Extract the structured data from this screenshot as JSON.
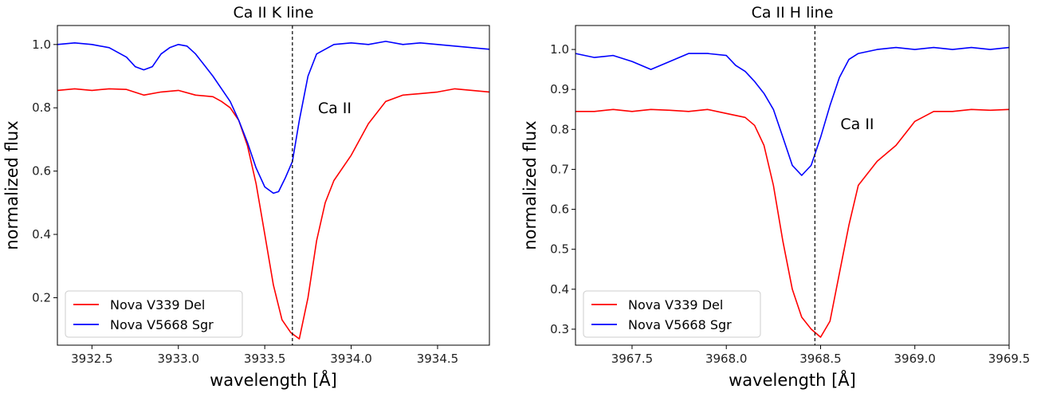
{
  "chart_data": [
    {
      "type": "line",
      "title": "Ca II K line",
      "xlabel": "wavelength [Å]",
      "ylabel": "normalized flux",
      "xlim": [
        3932.3,
        3934.8
      ],
      "ylim": [
        0.05,
        1.06
      ],
      "xticks": [
        "3932.5",
        "3933.0",
        "3933.5",
        "3934.0",
        "3934.5"
      ],
      "xtick_values": [
        3932.5,
        3933.0,
        3933.5,
        3934.0,
        3934.5
      ],
      "yticks": [
        "0.2",
        "0.4",
        "0.6",
        "0.8",
        "1.0"
      ],
      "ytick_values": [
        0.2,
        0.4,
        0.6,
        0.8,
        1.0
      ],
      "vline": 3933.66,
      "annotation": "Ca II",
      "legend_position": "lower-left",
      "grid": false,
      "series": [
        {
          "name": "Nova V339 Del",
          "color": "#ff0000",
          "x": [
            3932.3,
            3932.4,
            3932.5,
            3932.6,
            3932.7,
            3932.8,
            3932.9,
            3933.0,
            3933.1,
            3933.2,
            3933.25,
            3933.3,
            3933.35,
            3933.4,
            3933.45,
            3933.5,
            3933.55,
            3933.6,
            3933.65,
            3933.7,
            3933.75,
            3933.8,
            3933.85,
            3933.9,
            3934.0,
            3934.1,
            3934.2,
            3934.3,
            3934.4,
            3934.5,
            3934.6,
            3934.7,
            3934.8
          ],
          "y": [
            0.855,
            0.86,
            0.855,
            0.86,
            0.858,
            0.84,
            0.85,
            0.855,
            0.84,
            0.835,
            0.82,
            0.8,
            0.76,
            0.68,
            0.56,
            0.4,
            0.24,
            0.13,
            0.09,
            0.07,
            0.2,
            0.38,
            0.5,
            0.57,
            0.65,
            0.75,
            0.82,
            0.84,
            0.845,
            0.85,
            0.86,
            0.855,
            0.85
          ]
        },
        {
          "name": "Nova V5668 Sgr",
          "color": "#0000ff",
          "x": [
            3932.3,
            3932.4,
            3932.5,
            3932.6,
            3932.7,
            3932.75,
            3932.8,
            3932.85,
            3932.9,
            3932.95,
            3933.0,
            3933.05,
            3933.1,
            3933.2,
            3933.3,
            3933.35,
            3933.4,
            3933.45,
            3933.5,
            3933.55,
            3933.58,
            3933.62,
            3933.66,
            3933.7,
            3933.75,
            3933.8,
            3933.9,
            3934.0,
            3934.1,
            3934.2,
            3934.3,
            3934.4,
            3934.5,
            3934.6,
            3934.7,
            3934.8
          ],
          "y": [
            1.0,
            1.005,
            1.0,
            0.99,
            0.96,
            0.93,
            0.92,
            0.93,
            0.97,
            0.99,
            1.0,
            0.995,
            0.97,
            0.9,
            0.82,
            0.76,
            0.69,
            0.61,
            0.55,
            0.53,
            0.535,
            0.58,
            0.63,
            0.76,
            0.9,
            0.97,
            1.0,
            1.005,
            1.0,
            1.01,
            1.0,
            1.005,
            1.0,
            0.995,
            0.99,
            0.985
          ]
        }
      ]
    },
    {
      "type": "line",
      "title": "Ca II H line",
      "xlabel": "wavelength [Å]",
      "ylabel": "normalized flux",
      "xlim": [
        3967.2,
        3969.5
      ],
      "ylim": [
        0.26,
        1.06
      ],
      "xticks": [
        "3967.5",
        "3968.0",
        "3968.5",
        "3969.0",
        "3969.5"
      ],
      "xtick_values": [
        3967.5,
        3968.0,
        3968.5,
        3969.0,
        3969.5
      ],
      "yticks": [
        "0.3",
        "0.4",
        "0.5",
        "0.6",
        "0.7",
        "0.8",
        "0.9",
        "1.0"
      ],
      "ytick_values": [
        0.3,
        0.4,
        0.5,
        0.6,
        0.7,
        0.8,
        0.9,
        1.0
      ],
      "vline": 3968.47,
      "annotation": "Ca II",
      "legend_position": "lower-left",
      "grid": false,
      "series": [
        {
          "name": "Nova V339 Del",
          "color": "#ff0000",
          "x": [
            3967.2,
            3967.3,
            3967.4,
            3967.5,
            3967.6,
            3967.7,
            3967.8,
            3967.9,
            3968.0,
            3968.1,
            3968.15,
            3968.2,
            3968.25,
            3968.3,
            3968.35,
            3968.4,
            3968.45,
            3968.5,
            3968.55,
            3968.6,
            3968.65,
            3968.7,
            3968.8,
            3968.9,
            3969.0,
            3969.1,
            3969.2,
            3969.3,
            3969.4,
            3969.5
          ],
          "y": [
            0.845,
            0.845,
            0.85,
            0.845,
            0.85,
            0.848,
            0.845,
            0.85,
            0.84,
            0.83,
            0.81,
            0.76,
            0.66,
            0.52,
            0.4,
            0.33,
            0.3,
            0.28,
            0.32,
            0.44,
            0.56,
            0.66,
            0.72,
            0.76,
            0.82,
            0.845,
            0.845,
            0.85,
            0.848,
            0.85
          ]
        },
        {
          "name": "Nova V5668 Sgr",
          "color": "#0000ff",
          "x": [
            3967.2,
            3967.3,
            3967.4,
            3967.5,
            3967.6,
            3967.7,
            3967.8,
            3967.9,
            3968.0,
            3968.05,
            3968.1,
            3968.15,
            3968.2,
            3968.25,
            3968.3,
            3968.35,
            3968.4,
            3968.45,
            3968.5,
            3968.55,
            3968.6,
            3968.65,
            3968.7,
            3968.8,
            3968.9,
            3969.0,
            3969.1,
            3969.2,
            3969.3,
            3969.4,
            3969.5
          ],
          "y": [
            0.99,
            0.98,
            0.985,
            0.97,
            0.95,
            0.97,
            0.99,
            0.99,
            0.985,
            0.96,
            0.945,
            0.92,
            0.89,
            0.85,
            0.78,
            0.71,
            0.685,
            0.71,
            0.78,
            0.86,
            0.93,
            0.975,
            0.99,
            1.0,
            1.005,
            1.0,
            1.005,
            1.0,
            1.005,
            1.0,
            1.005
          ]
        }
      ]
    }
  ]
}
